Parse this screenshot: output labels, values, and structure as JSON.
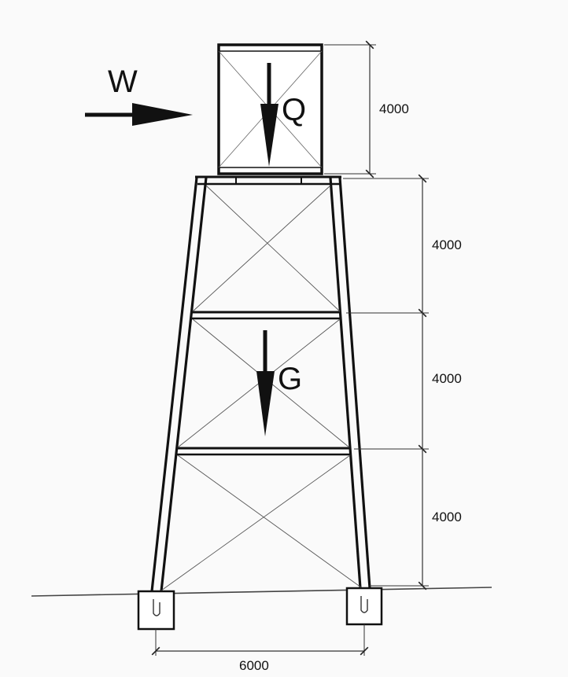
{
  "loads": {
    "wind": {
      "label": "W"
    },
    "tank_weight": {
      "label": "Q"
    },
    "structure_weight": {
      "label": "G"
    }
  },
  "dimensions": {
    "tank_height": "4000",
    "level_1": "4000",
    "level_2": "4000",
    "level_3": "4000",
    "base_width": "6000"
  }
}
